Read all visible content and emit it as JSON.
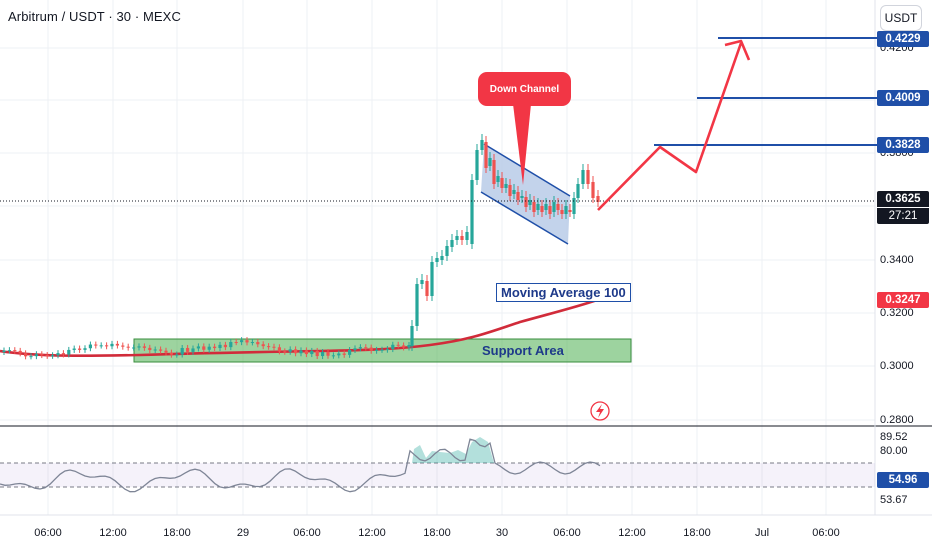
{
  "header": {
    "symbol_title": "Arbitrum / USDT · 30 · MEXC",
    "currency_button": "USDT"
  },
  "price_axis": {
    "labels": [
      "0.4200",
      "0.3800",
      "0.3400",
      "0.3200",
      "0.3000",
      "0.2800"
    ]
  },
  "price_tags": {
    "target_top": "0.4229",
    "target_mid": "0.4009",
    "target_low": "0.3828",
    "current_price": "0.3625",
    "countdown": "27:21",
    "ma_value": "0.3247"
  },
  "oscillator_axis": {
    "labels": [
      "89.52",
      "80.00",
      "53.67"
    ],
    "current_value": "54.96"
  },
  "time_axis": {
    "labels": [
      "06:00",
      "12:00",
      "18:00",
      "29",
      "06:00",
      "12:00",
      "18:00",
      "30",
      "06:00",
      "12:00",
      "18:00",
      "Jul",
      "06:00"
    ]
  },
  "annotations": {
    "down_channel": "Down Channel",
    "moving_average": "Moving Average 100",
    "support_area": "Support Area"
  },
  "colors": {
    "up_candle": "#26a69a",
    "down_candle": "#ef5350",
    "line_blue": "#1f4fa8",
    "arrow_red": "#f23645",
    "ma_red": "#d12b3a",
    "support_green": "#4caf50",
    "channel_fill": "#b8cbe8",
    "rsi_purple": "#7e57c2"
  }
}
